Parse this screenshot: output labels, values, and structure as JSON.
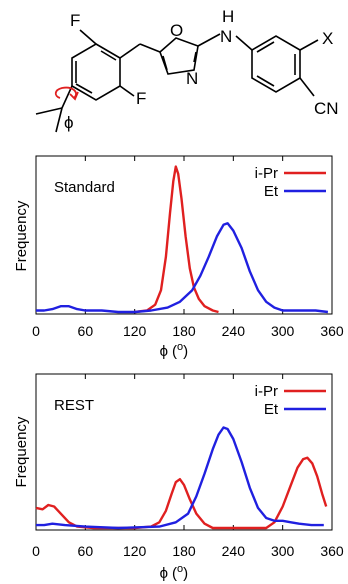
{
  "molecule": {
    "atoms": {
      "f_top": "F",
      "f_bottom": "F",
      "oxygen": "O",
      "nitrogen_ring": "N",
      "nh_n": "N",
      "nh_h": "H",
      "x": "X",
      "cn": "CN"
    },
    "torsion_label": "ϕ",
    "torsion_color": "#e02020"
  },
  "chart_data": [
    {
      "type": "line",
      "panel_label": "Standard",
      "ylabel": "Frequency",
      "xlabel_symbol": "ϕ",
      "xlabel_unit": "(°)",
      "xlim": [
        0,
        360
      ],
      "ylim": [
        0,
        1
      ],
      "xticks": [
        "0",
        "60",
        "120",
        "180",
        "240",
        "300",
        "360"
      ],
      "legend_position": "top-right",
      "series": [
        {
          "name": "i-Pr",
          "color": "#e02020",
          "points": [
            [
              120,
              0.0
            ],
            [
              135,
              0.01
            ],
            [
              145,
              0.05
            ],
            [
              152,
              0.15
            ],
            [
              158,
              0.38
            ],
            [
              163,
              0.68
            ],
            [
              167,
              0.9
            ],
            [
              170,
              1.0
            ],
            [
              173,
              0.95
            ],
            [
              177,
              0.78
            ],
            [
              182,
              0.52
            ],
            [
              187,
              0.3
            ],
            [
              192,
              0.17
            ],
            [
              198,
              0.09
            ],
            [
              205,
              0.04
            ],
            [
              215,
              0.01
            ],
            [
              222,
              0.0
            ]
          ]
        },
        {
          "name": "Et",
          "color": "#2020e0",
          "points": [
            [
              0,
              0.01
            ],
            [
              10,
              0.01
            ],
            [
              20,
              0.02
            ],
            [
              30,
              0.04
            ],
            [
              40,
              0.04
            ],
            [
              50,
              0.02
            ],
            [
              60,
              0.01
            ],
            [
              80,
              0.01
            ],
            [
              100,
              0.0
            ],
            [
              120,
              0.0
            ],
            [
              140,
              0.01
            ],
            [
              160,
              0.03
            ],
            [
              175,
              0.07
            ],
            [
              190,
              0.15
            ],
            [
              200,
              0.25
            ],
            [
              210,
              0.38
            ],
            [
              220,
              0.52
            ],
            [
              228,
              0.6
            ],
            [
              233,
              0.61
            ],
            [
              240,
              0.56
            ],
            [
              250,
              0.44
            ],
            [
              260,
              0.28
            ],
            [
              270,
              0.15
            ],
            [
              280,
              0.07
            ],
            [
              290,
              0.03
            ],
            [
              300,
              0.01
            ],
            [
              320,
              0.01
            ],
            [
              340,
              0.01
            ],
            [
              355,
              0.0
            ]
          ]
        }
      ]
    },
    {
      "type": "line",
      "panel_label": "REST",
      "ylabel": "Frequency",
      "xlabel_symbol": "ϕ",
      "xlabel_unit": "(°)",
      "xlim": [
        0,
        360
      ],
      "ylim": [
        0,
        1
      ],
      "xticks": [
        "0",
        "60",
        "120",
        "180",
        "240",
        "300",
        "360"
      ],
      "legend_position": "top-right",
      "series": [
        {
          "name": "i-Pr",
          "color": "#e02020",
          "points": [
            [
              0,
              0.14
            ],
            [
              8,
              0.13
            ],
            [
              15,
              0.16
            ],
            [
              22,
              0.15
            ],
            [
              30,
              0.1
            ],
            [
              40,
              0.04
            ],
            [
              50,
              0.01
            ],
            [
              70,
              0.0
            ],
            [
              120,
              0.0
            ],
            [
              140,
              0.01
            ],
            [
              150,
              0.04
            ],
            [
              158,
              0.12
            ],
            [
              165,
              0.24
            ],
            [
              170,
              0.32
            ],
            [
              175,
              0.34
            ],
            [
              180,
              0.3
            ],
            [
              187,
              0.2
            ],
            [
              195,
              0.1
            ],
            [
              205,
              0.03
            ],
            [
              215,
              0.0
            ],
            [
              280,
              0.0
            ],
            [
              290,
              0.04
            ],
            [
              300,
              0.15
            ],
            [
              310,
              0.3
            ],
            [
              318,
              0.42
            ],
            [
              325,
              0.48
            ],
            [
              330,
              0.49
            ],
            [
              336,
              0.45
            ],
            [
              342,
              0.36
            ],
            [
              348,
              0.24
            ],
            [
              353,
              0.15
            ]
          ]
        },
        {
          "name": "Et",
          "color": "#2020e0",
          "points": [
            [
              0,
              0.02
            ],
            [
              10,
              0.02
            ],
            [
              20,
              0.03
            ],
            [
              35,
              0.02
            ],
            [
              60,
              0.01
            ],
            [
              100,
              0.0
            ],
            [
              150,
              0.01
            ],
            [
              170,
              0.04
            ],
            [
              185,
              0.1
            ],
            [
              195,
              0.22
            ],
            [
              205,
              0.38
            ],
            [
              215,
              0.55
            ],
            [
              222,
              0.65
            ],
            [
              228,
              0.7
            ],
            [
              233,
              0.69
            ],
            [
              240,
              0.62
            ],
            [
              250,
              0.46
            ],
            [
              260,
              0.28
            ],
            [
              270,
              0.14
            ],
            [
              280,
              0.07
            ],
            [
              290,
              0.05
            ],
            [
              300,
              0.05
            ],
            [
              310,
              0.04
            ],
            [
              320,
              0.03
            ],
            [
              335,
              0.02
            ],
            [
              350,
              0.02
            ]
          ]
        }
      ]
    }
  ]
}
